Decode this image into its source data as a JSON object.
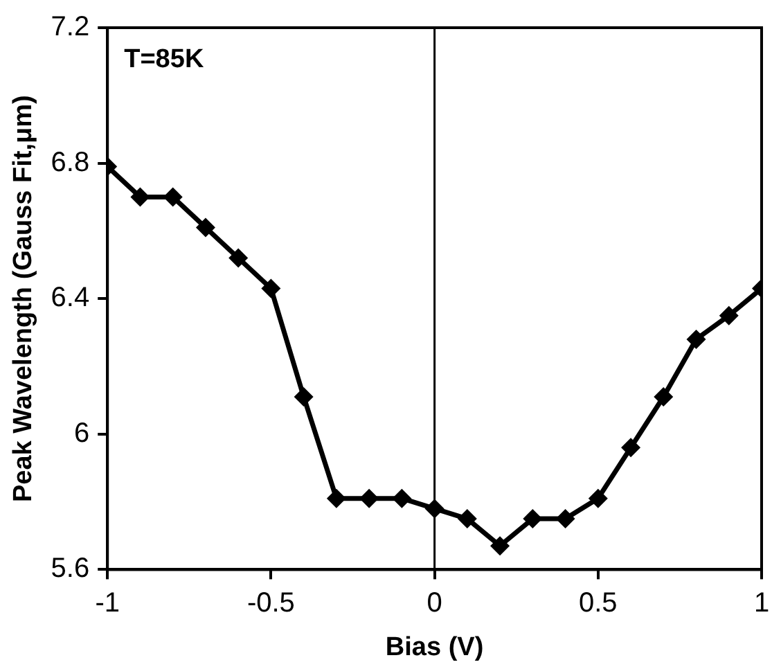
{
  "chart_data": {
    "type": "line",
    "xlabel": "Bias (V)",
    "ylabel": "Peak Wavelength (Gauss Fit,μm)",
    "annotations": [
      "T=85K"
    ],
    "x": [
      -1,
      -0.9,
      -0.8,
      -0.7,
      -0.6,
      -0.5,
      -0.4,
      -0.3,
      -0.2,
      -0.1,
      0,
      0.1,
      0.2,
      0.3,
      0.4,
      0.5,
      0.6,
      0.7,
      0.8,
      0.9,
      1
    ],
    "series": [
      {
        "color": "#000000",
        "values": [
          6.79,
          6.7,
          6.7,
          6.61,
          6.52,
          6.43,
          6.11,
          5.81,
          5.81,
          5.81,
          5.78,
          5.75,
          5.67,
          5.75,
          5.75,
          5.81,
          5.96,
          6.11,
          6.28,
          6.35,
          6.43
        ]
      }
    ],
    "xlim": [
      -1,
      1
    ],
    "xticks": [
      -1,
      -0.5,
      0,
      0.5,
      1
    ],
    "ylim": [
      5.6,
      7.2
    ],
    "yticks": [
      5.6,
      6,
      6.4,
      6.8,
      7.2
    ],
    "ref_lines": [
      {
        "axis": "x",
        "value": 0,
        "color": "#000000"
      }
    ],
    "grid": false,
    "legend": false,
    "marker": "diamond",
    "line_style": "solid"
  }
}
